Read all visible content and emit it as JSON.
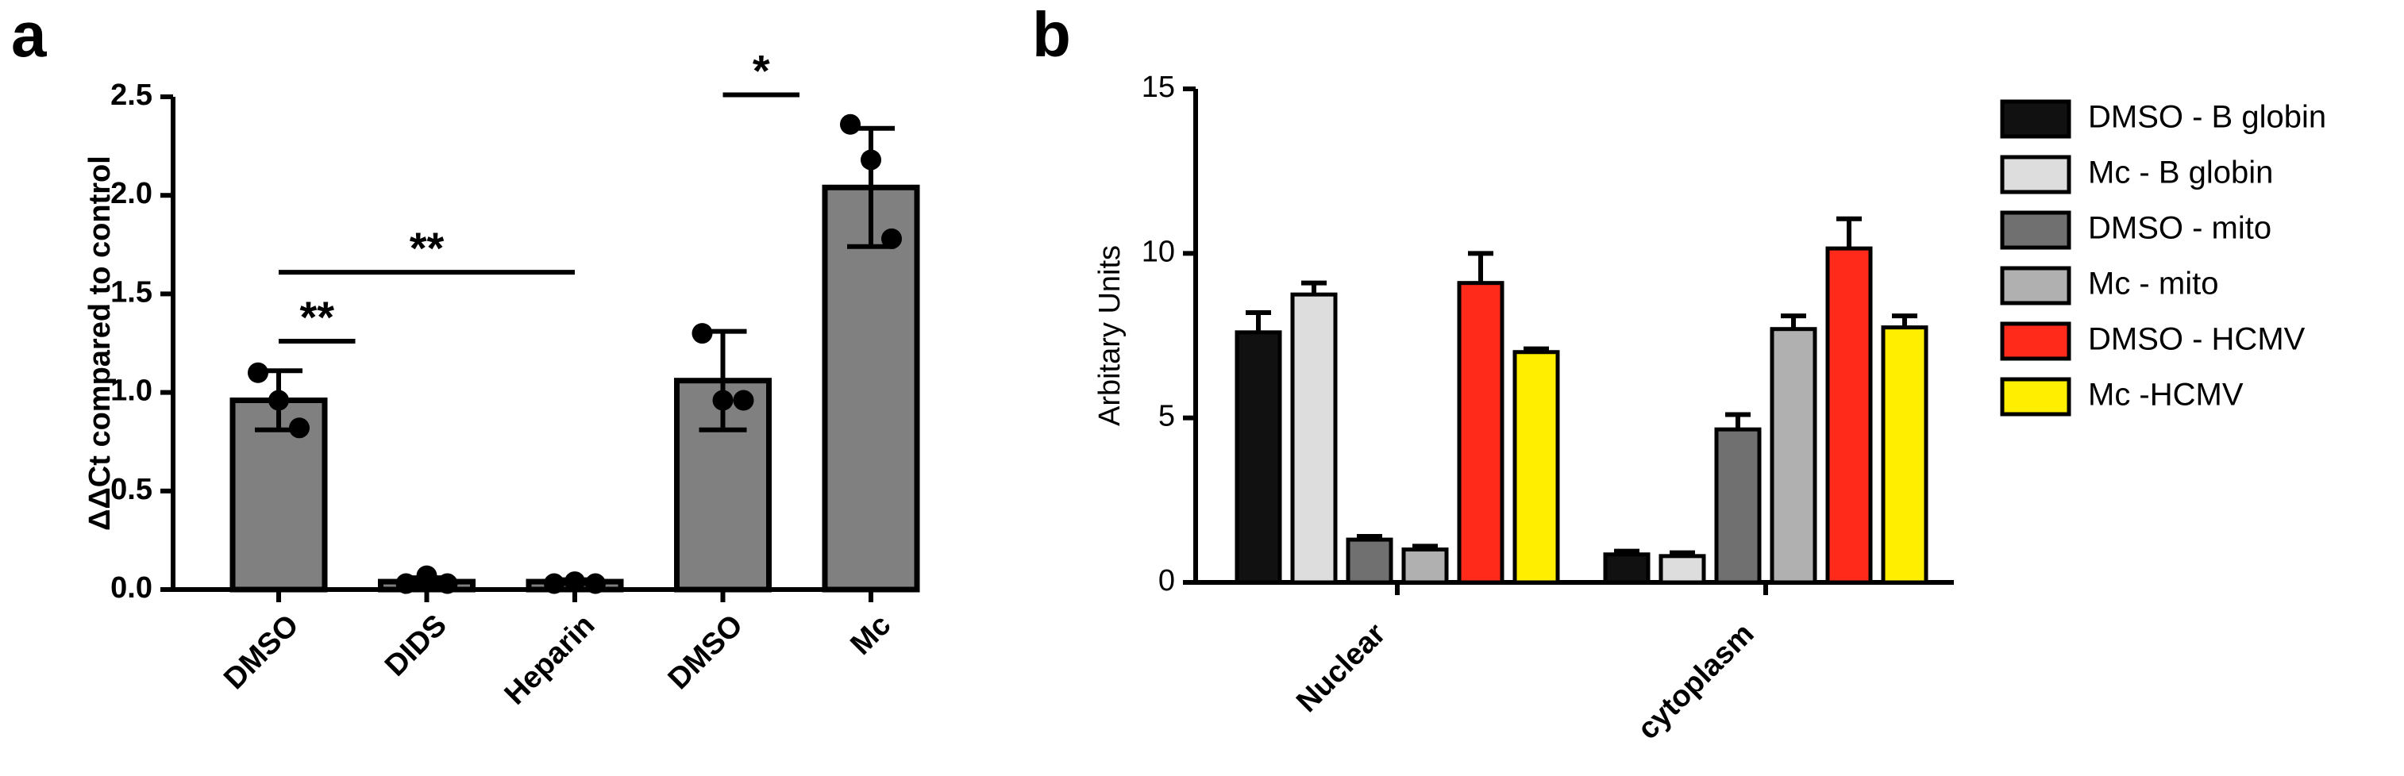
{
  "chart_data": [
    {
      "type": "bar",
      "panel_label": "a",
      "y_label": "ΔΔCt compared to control",
      "categories": [
        "DMSO",
        "DIDS",
        "Heparin",
        "DMSO",
        "Mc"
      ],
      "values": [
        0.96,
        0.04,
        0.04,
        1.06,
        2.04
      ],
      "errors": [
        0.15,
        0.02,
        0.01,
        0.25,
        0.3
      ],
      "points": [
        [
          1.1,
          0.96,
          0.82
        ],
        [
          0.03,
          0.07,
          0.03
        ],
        [
          0.03,
          0.04,
          0.03
        ],
        [
          1.3,
          0.96,
          0.96
        ],
        [
          2.36,
          2.18,
          1.78
        ]
      ],
      "color": "#808080",
      "ylim": [
        0,
        2.5
      ],
      "yticks": [
        {
          "value": 0,
          "label": "0.0"
        },
        0.5,
        {
          "value": 1,
          "label": "1.0"
        },
        1.5,
        {
          "value": 2,
          "label": "2.0"
        },
        2.5
      ],
      "annotations": [
        {
          "text": "**",
          "from": 0,
          "to": 1
        },
        {
          "text": "**",
          "from": 0,
          "to": 2
        },
        {
          "text": "*",
          "from": 3,
          "to": 4
        }
      ]
    },
    {
      "type": "bar",
      "panel_label": "b",
      "y_label": "Arbitary Units",
      "categories": [
        "Nuclear",
        "cytoplasm"
      ],
      "series": [
        {
          "name": "DMSO - B globin",
          "color": "#111111",
          "values": [
            7.6,
            0.85
          ],
          "errors": [
            0.6,
            0.1
          ]
        },
        {
          "name": "Mc - B globin",
          "color": "#dddddd",
          "values": [
            8.75,
            0.8
          ],
          "errors": [
            0.35,
            0.1
          ]
        },
        {
          "name": "DMSO - mito",
          "color": "#707070",
          "values": [
            1.3,
            4.65
          ],
          "errors": [
            0.1,
            0.45
          ]
        },
        {
          "name": "Mc - mito",
          "color": "#b0b0b0",
          "values": [
            1.0,
            7.7
          ],
          "errors": [
            0.1,
            0.4
          ]
        },
        {
          "name": "DMSO - HCMV",
          "color": "#ff2a1a",
          "values": [
            9.1,
            10.15
          ],
          "errors": [
            0.9,
            0.9
          ]
        },
        {
          "name": "Mc -HCMV",
          "color": "#ffee00",
          "values": [
            7.0,
            7.75
          ],
          "errors": [
            0.1,
            0.35
          ]
        }
      ],
      "ylim": [
        0,
        15
      ],
      "yticks": [
        0,
        5,
        10,
        15
      ],
      "legend": "right"
    }
  ]
}
